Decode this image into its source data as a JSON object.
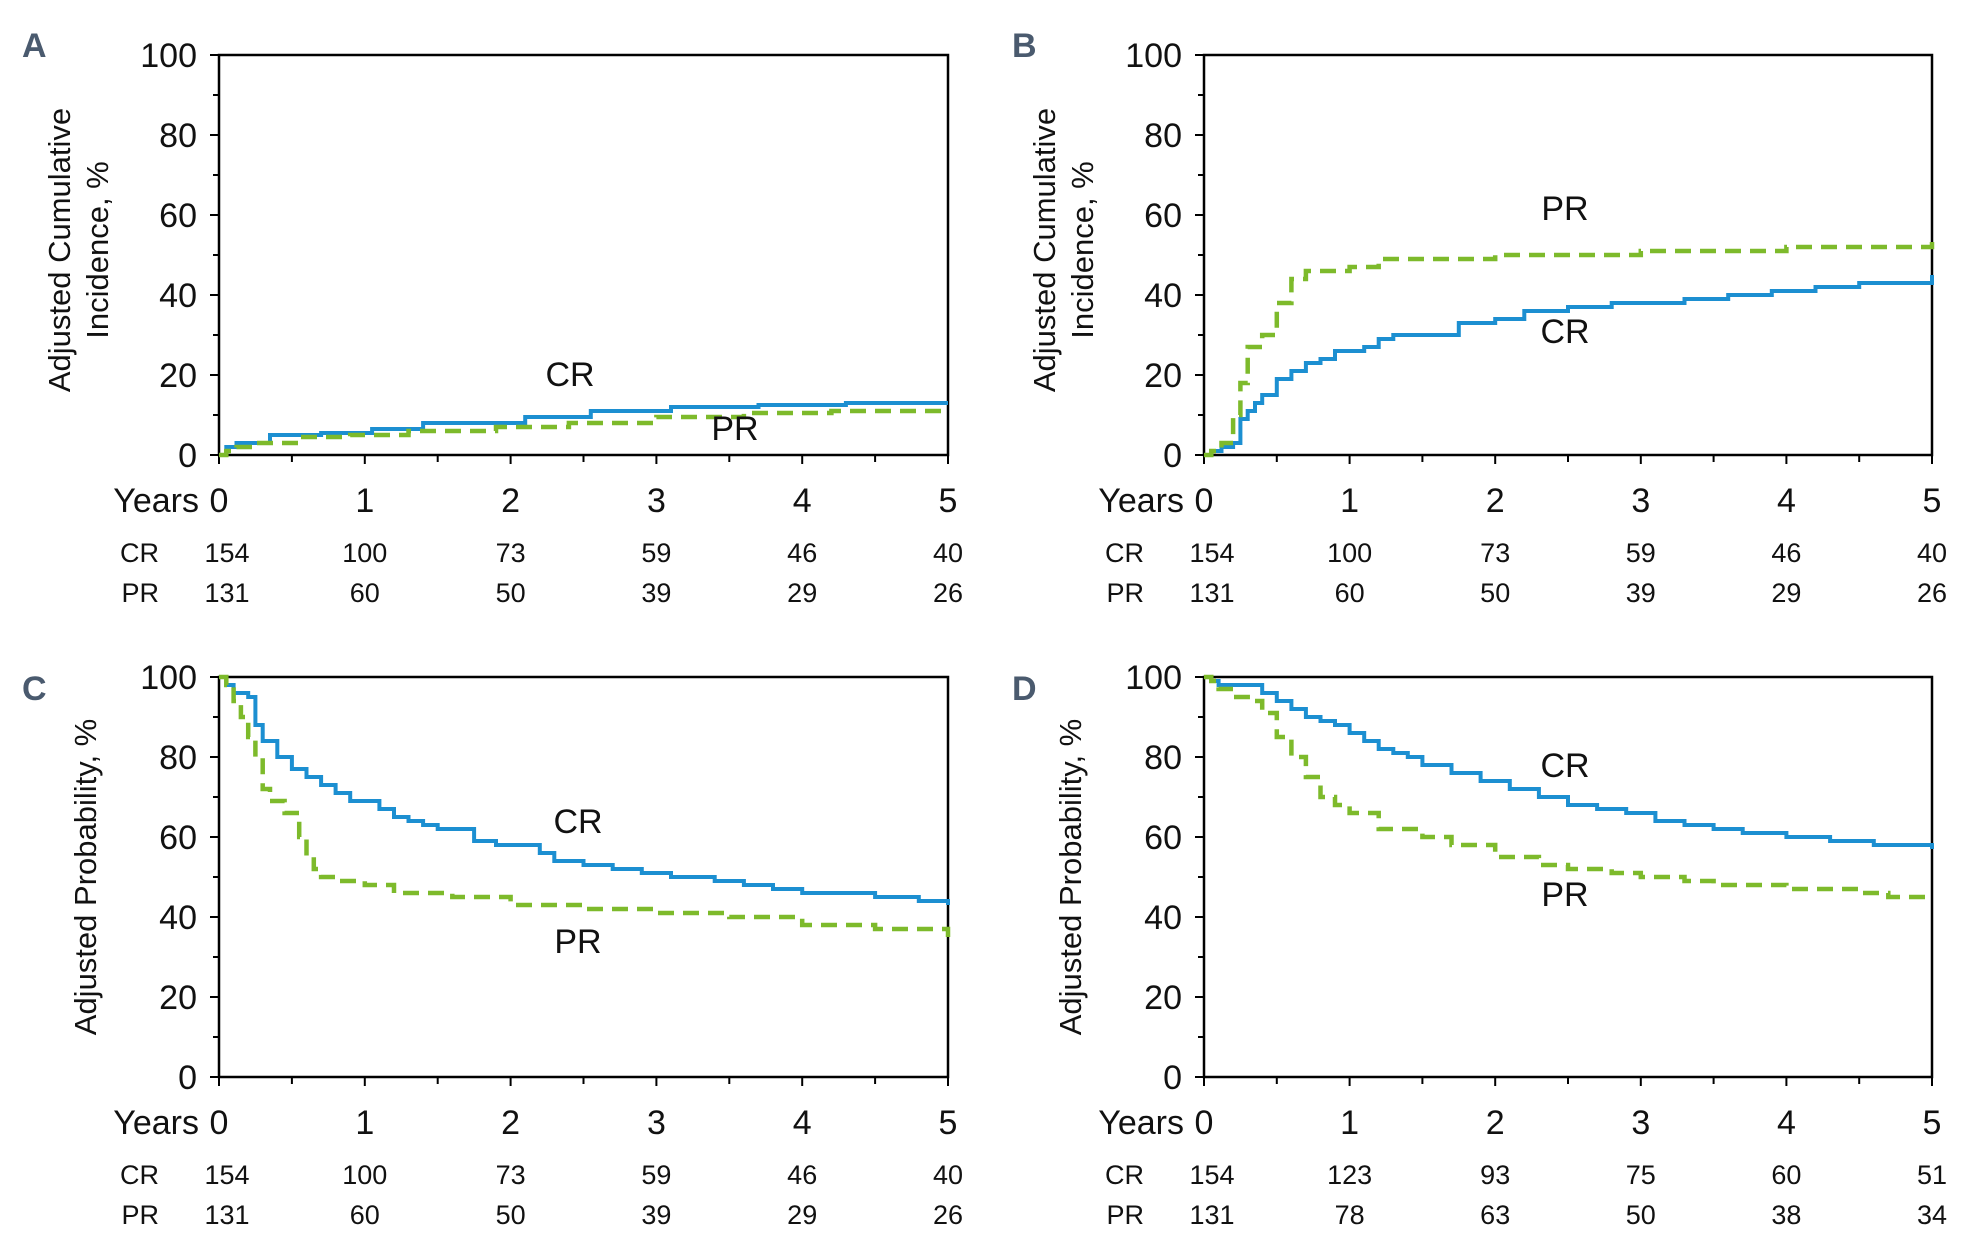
{
  "colors": {
    "cr": "#1c8fd1",
    "pr": "#7dba2b"
  },
  "panels": [
    {
      "letter": "A",
      "ylabel_lines": [
        "Adjusted Cumulative",
        "Incidence, %"
      ],
      "yticks": [
        "0",
        "20",
        "40",
        "60",
        "80",
        "100"
      ],
      "xlabel": "Years",
      "xticks": [
        "0",
        "1",
        "2",
        "3",
        "4",
        "5"
      ],
      "risk": [
        {
          "label": "CR",
          "values": [
            "154",
            "100",
            "73",
            "59",
            "46",
            "40"
          ]
        },
        {
          "label": "PR",
          "values": [
            "131",
            "60",
            "50",
            "39",
            "29",
            "26"
          ]
        }
      ],
      "curve_labels": {
        "cr": "CR",
        "pr": "PR"
      }
    },
    {
      "letter": "B",
      "ylabel_lines": [
        "Adjusted Cumulative",
        "Incidence, %"
      ],
      "yticks": [
        "0",
        "20",
        "40",
        "60",
        "80",
        "100"
      ],
      "xlabel": "Years",
      "xticks": [
        "0",
        "1",
        "2",
        "3",
        "4",
        "5"
      ],
      "risk": [
        {
          "label": "CR",
          "values": [
            "154",
            "100",
            "73",
            "59",
            "46",
            "40"
          ]
        },
        {
          "label": "PR",
          "values": [
            "131",
            "60",
            "50",
            "39",
            "29",
            "26"
          ]
        }
      ],
      "curve_labels": {
        "cr": "CR",
        "pr": "PR"
      }
    },
    {
      "letter": "C",
      "ylabel_lines": [
        "Adjusted Probability, %"
      ],
      "yticks": [
        "0",
        "20",
        "40",
        "60",
        "80",
        "100"
      ],
      "xlabel": "Years",
      "xticks": [
        "0",
        "1",
        "2",
        "3",
        "4",
        "5"
      ],
      "risk": [
        {
          "label": "CR",
          "values": [
            "154",
            "100",
            "73",
            "59",
            "46",
            "40"
          ]
        },
        {
          "label": "PR",
          "values": [
            "131",
            "60",
            "50",
            "39",
            "29",
            "26"
          ]
        }
      ],
      "curve_labels": {
        "cr": "CR",
        "pr": "PR"
      }
    },
    {
      "letter": "D",
      "ylabel_lines": [
        "Adjusted Probability, %"
      ],
      "yticks": [
        "0",
        "20",
        "40",
        "60",
        "80",
        "100"
      ],
      "xlabel": "Years",
      "xticks": [
        "0",
        "1",
        "2",
        "3",
        "4",
        "5"
      ],
      "risk": [
        {
          "label": "CR",
          "values": [
            "154",
            "123",
            "93",
            "75",
            "60",
            "51"
          ]
        },
        {
          "label": "PR",
          "values": [
            "131",
            "78",
            "63",
            "50",
            "38",
            "34"
          ]
        }
      ],
      "curve_labels": {
        "cr": "CR",
        "pr": "PR"
      }
    }
  ],
  "chart_data": [
    {
      "panel": "A",
      "type": "line",
      "xlabel": "Years",
      "ylabel": "Adjusted Cumulative Incidence, %",
      "xlim": [
        0,
        5
      ],
      "ylim": [
        0,
        100
      ],
      "series": [
        {
          "name": "CR",
          "style": "solid",
          "x": [
            0,
            0.05,
            0.12,
            0.35,
            0.7,
            1.05,
            1.4,
            2.1,
            2.55,
            3.1,
            3.7,
            4.3,
            5
          ],
          "y": [
            0,
            2,
            3,
            5,
            5.5,
            6.5,
            8,
            9.5,
            11,
            12,
            12.5,
            13,
            13
          ]
        },
        {
          "name": "PR",
          "style": "dashed",
          "x": [
            0,
            0.05,
            0.12,
            0.25,
            0.55,
            0.9,
            1.3,
            1.9,
            2.4,
            3.0,
            3.6,
            4.2,
            5
          ],
          "y": [
            0,
            1,
            2,
            3,
            4.5,
            5,
            6,
            7,
            8,
            9.5,
            10.5,
            11,
            11
          ]
        }
      ]
    },
    {
      "panel": "B",
      "type": "line",
      "xlabel": "Years",
      "ylabel": "Adjusted Cumulative Incidence, %",
      "xlim": [
        0,
        5
      ],
      "ylim": [
        0,
        100
      ],
      "series": [
        {
          "name": "CR",
          "style": "solid",
          "x": [
            0,
            0.05,
            0.12,
            0.2,
            0.25,
            0.3,
            0.35,
            0.4,
            0.5,
            0.6,
            0.7,
            0.8,
            0.9,
            1.0,
            1.1,
            1.2,
            1.3,
            1.5,
            1.75,
            2.0,
            2.2,
            2.5,
            2.8,
            3.0,
            3.3,
            3.6,
            3.9,
            4.2,
            4.5,
            4.8,
            5.0
          ],
          "y": [
            0,
            1,
            2,
            3,
            9,
            11,
            13,
            15,
            19,
            21,
            23,
            24,
            26,
            26,
            27,
            29,
            30,
            30,
            33,
            34,
            36,
            37,
            38,
            38,
            39,
            40,
            41,
            42,
            43,
            43,
            45
          ]
        },
        {
          "name": "PR",
          "style": "dashed",
          "x": [
            0,
            0.05,
            0.12,
            0.2,
            0.25,
            0.3,
            0.4,
            0.5,
            0.6,
            0.7,
            0.8,
            1.0,
            1.2,
            1.5,
            2.0,
            2.5,
            3.0,
            3.5,
            4.0,
            4.5,
            5.0
          ],
          "y": [
            0,
            1,
            3,
            10,
            18,
            27,
            30,
            38,
            44,
            46,
            46,
            47,
            49,
            49,
            50,
            50,
            51,
            51,
            52,
            52,
            54
          ]
        }
      ]
    },
    {
      "panel": "C",
      "type": "line",
      "xlabel": "Years",
      "ylabel": "Adjusted Probability, %",
      "xlim": [
        0,
        5
      ],
      "ylim": [
        0,
        100
      ],
      "series": [
        {
          "name": "CR",
          "style": "solid",
          "x": [
            0,
            0.05,
            0.1,
            0.2,
            0.25,
            0.3,
            0.4,
            0.5,
            0.6,
            0.7,
            0.8,
            0.9,
            1.0,
            1.1,
            1.2,
            1.3,
            1.4,
            1.5,
            1.7,
            1.75,
            1.9,
            2.1,
            2.2,
            2.3,
            2.5,
            2.7,
            2.9,
            3.1,
            3.4,
            3.6,
            3.8,
            4.0,
            4.5,
            4.8,
            5.0
          ],
          "y": [
            100,
            98,
            96,
            95,
            88,
            84,
            80,
            77,
            75,
            73,
            71,
            69,
            69,
            67,
            65,
            64,
            63,
            62,
            62,
            59,
            58,
            58,
            56,
            54,
            53,
            52,
            51,
            50,
            49,
            48,
            47,
            46,
            45,
            44,
            43
          ]
        },
        {
          "name": "PR",
          "style": "dashed",
          "x": [
            0,
            0.05,
            0.1,
            0.15,
            0.2,
            0.25,
            0.3,
            0.35,
            0.45,
            0.55,
            0.6,
            0.65,
            0.7,
            0.8,
            1.0,
            1.2,
            1.6,
            2.0,
            2.5,
            3.0,
            3.5,
            4.0,
            4.5,
            5.0
          ],
          "y": [
            100,
            98,
            94,
            90,
            85,
            80,
            72,
            69,
            66,
            60,
            55,
            52,
            50,
            49,
            48,
            46,
            45,
            43,
            42,
            41,
            40,
            38,
            37,
            35
          ]
        }
      ]
    },
    {
      "panel": "D",
      "type": "line",
      "xlabel": "Years",
      "ylabel": "Adjusted Probability, %",
      "xlim": [
        0,
        5
      ],
      "ylim": [
        0,
        100
      ],
      "series": [
        {
          "name": "CR",
          "style": "solid",
          "x": [
            0,
            0.05,
            0.1,
            0.3,
            0.4,
            0.5,
            0.6,
            0.7,
            0.8,
            0.9,
            1.0,
            1.1,
            1.2,
            1.3,
            1.4,
            1.5,
            1.7,
            1.9,
            2.1,
            2.3,
            2.5,
            2.7,
            2.9,
            3.1,
            3.3,
            3.5,
            3.7,
            4.0,
            4.3,
            4.6,
            4.9,
            5.0
          ],
          "y": [
            100,
            99,
            98,
            98,
            96,
            94,
            92,
            90,
            89,
            88,
            86,
            84,
            82,
            81,
            80,
            78,
            76,
            74,
            72,
            70,
            68,
            67,
            66,
            64,
            63,
            62,
            61,
            60,
            59,
            58,
            58,
            57
          ]
        },
        {
          "name": "PR",
          "style": "dashed",
          "x": [
            0,
            0.05,
            0.1,
            0.2,
            0.3,
            0.4,
            0.5,
            0.6,
            0.7,
            0.8,
            0.9,
            1.0,
            1.2,
            1.5,
            1.7,
            2.0,
            2.3,
            2.5,
            2.8,
            3.0,
            3.3,
            3.5,
            4.0,
            4.5,
            4.7,
            5.0
          ],
          "y": [
            100,
            99,
            97,
            95,
            94,
            91,
            85,
            80,
            75,
            70,
            68,
            66,
            62,
            60,
            58,
            55,
            53,
            52,
            51,
            50,
            49,
            48,
            47,
            46,
            45,
            45
          ]
        }
      ]
    }
  ]
}
